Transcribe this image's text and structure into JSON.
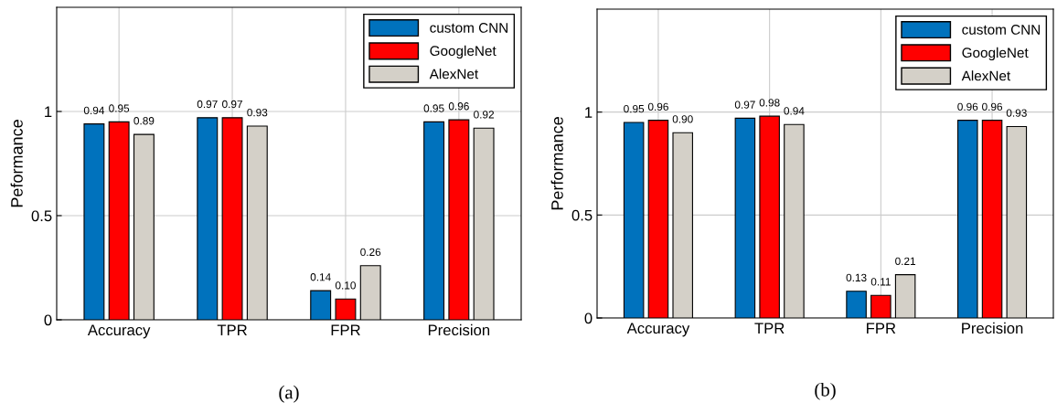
{
  "chart_data": [
    {
      "type": "bar",
      "ylabel": "Peformance",
      "categories": [
        "Accuracy",
        "TPR",
        "FPR",
        "Precision"
      ],
      "ylim": [
        0,
        1.5
      ],
      "yticks": [
        0,
        0.5,
        1
      ],
      "grid": true,
      "legend": "top right",
      "annotations": [
        "(a)"
      ],
      "series": [
        {
          "name": "custom CNN",
          "color": "#0072bd",
          "values": [
            0.94,
            0.97,
            0.14,
            0.95
          ],
          "value_labels": [
            "0.94",
            "0.97",
            "0.14",
            "0.95"
          ]
        },
        {
          "name": "GoogleNet",
          "color": "#ff0000",
          "values": [
            0.95,
            0.97,
            0.1,
            0.96
          ],
          "value_labels": [
            "0.95",
            "0.97",
            "0.10",
            "0.96"
          ]
        },
        {
          "name": "AlexNet",
          "color": "#d4d0c8",
          "values": [
            0.89,
            0.93,
            0.26,
            0.92
          ],
          "value_labels": [
            "0.89",
            "0.93",
            "0.26",
            "0.92"
          ]
        }
      ]
    },
    {
      "type": "bar",
      "ylabel": "Performance",
      "categories": [
        "Accuracy",
        "TPR",
        "FPR",
        "Precision"
      ],
      "ylim": [
        0,
        1.5
      ],
      "yticks": [
        0,
        0.5,
        1
      ],
      "grid": true,
      "legend": "top right",
      "annotations": [
        "(b)"
      ],
      "series": [
        {
          "name": "custom CNN",
          "color": "#0072bd",
          "values": [
            0.95,
            0.97,
            0.13,
            0.96
          ],
          "value_labels": [
            "0.95",
            "0.97",
            "0.13",
            "0.96"
          ]
        },
        {
          "name": "GoogleNet",
          "color": "#ff0000",
          "values": [
            0.96,
            0.98,
            0.11,
            0.96
          ],
          "value_labels": [
            "0.96",
            "0.98",
            "0.11",
            "0.96"
          ]
        },
        {
          "name": "AlexNet",
          "color": "#d4d0c8",
          "values": [
            0.9,
            0.94,
            0.21,
            0.93
          ],
          "value_labels": [
            "0.90",
            "0.94",
            "0.21",
            "0.93"
          ]
        }
      ]
    }
  ]
}
